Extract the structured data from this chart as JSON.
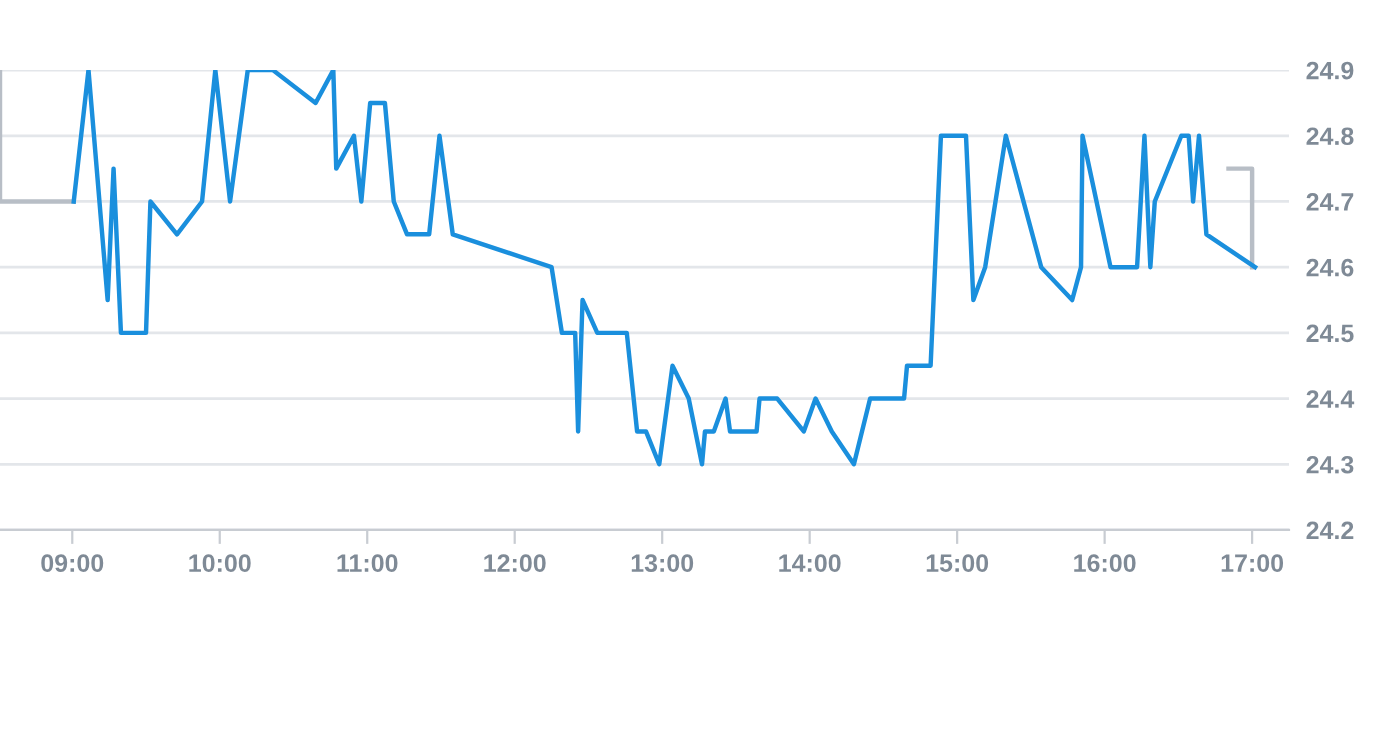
{
  "chart_data": {
    "type": "line",
    "xlim": [
      8.51,
      17.25
    ],
    "xticks": [
      {
        "value": 9,
        "label": "09:00"
      },
      {
        "value": 10,
        "label": "10:00"
      },
      {
        "value": 11,
        "label": "11:00"
      },
      {
        "value": 12,
        "label": "12:00"
      },
      {
        "value": 13,
        "label": "13:00"
      },
      {
        "value": 14,
        "label": "14:00"
      },
      {
        "value": 15,
        "label": "15:00"
      },
      {
        "value": 16,
        "label": "16:00"
      },
      {
        "value": 17,
        "label": "17:00"
      }
    ],
    "ylim": [
      24.2,
      24.9
    ],
    "yticks": [
      24.2,
      24.3,
      24.4,
      24.5,
      24.6,
      24.7,
      24.8,
      24.9
    ],
    "grid": "y",
    "marker": "none",
    "line_style": "solid",
    "series": [
      {
        "color": "#b8bec6",
        "x": [
          8.51,
          8.51,
          9.01,
          null,
          16.84,
          17.0,
          17.0
        ],
        "values": [
          24.9,
          24.7,
          24.7,
          null,
          24.75,
          24.75,
          24.6
        ]
      },
      {
        "color": "#1a8fdd",
        "x": [
          9.01,
          9.11,
          9.24,
          9.28,
          9.33,
          9.5,
          9.53,
          9.71,
          9.88,
          9.97,
          10.07,
          10.19,
          10.36,
          10.65,
          10.77,
          10.79,
          10.91,
          10.96,
          11.02,
          11.12,
          11.18,
          11.27,
          11.42,
          11.49,
          11.58,
          12.25,
          12.32,
          12.41,
          12.43,
          12.46,
          12.56,
          12.76,
          12.83,
          12.89,
          12.98,
          13.07,
          13.18,
          13.27,
          13.29,
          13.35,
          13.43,
          13.46,
          13.64,
          13.66,
          13.78,
          13.96,
          14.04,
          14.15,
          14.3,
          14.41,
          14.64,
          14.66,
          14.82,
          14.89,
          15.06,
          15.11,
          15.19,
          15.33,
          15.57,
          15.78,
          15.84,
          15.85,
          16.04,
          16.22,
          16.27,
          16.31,
          16.34,
          16.52,
          16.57,
          16.6,
          16.64,
          16.69,
          17.02
        ],
        "values": [
          24.7,
          24.9,
          24.55,
          24.75,
          24.5,
          24.5,
          24.7,
          24.65,
          24.7,
          24.9,
          24.7,
          24.9,
          24.9,
          24.85,
          24.9,
          24.75,
          24.8,
          24.7,
          24.85,
          24.85,
          24.7,
          24.65,
          24.65,
          24.8,
          24.65,
          24.6,
          24.5,
          24.5,
          24.35,
          24.55,
          24.5,
          24.5,
          24.35,
          24.35,
          24.3,
          24.45,
          24.4,
          24.3,
          24.35,
          24.35,
          24.4,
          24.35,
          24.35,
          24.4,
          24.4,
          24.35,
          24.4,
          24.35,
          24.3,
          24.4,
          24.4,
          24.45,
          24.45,
          24.8,
          24.8,
          24.55,
          24.6,
          24.8,
          24.6,
          24.55,
          24.6,
          24.8,
          24.6,
          24.6,
          24.8,
          24.6,
          24.7,
          24.8,
          24.8,
          24.7,
          24.8,
          24.65,
          24.6
        ]
      }
    ]
  }
}
